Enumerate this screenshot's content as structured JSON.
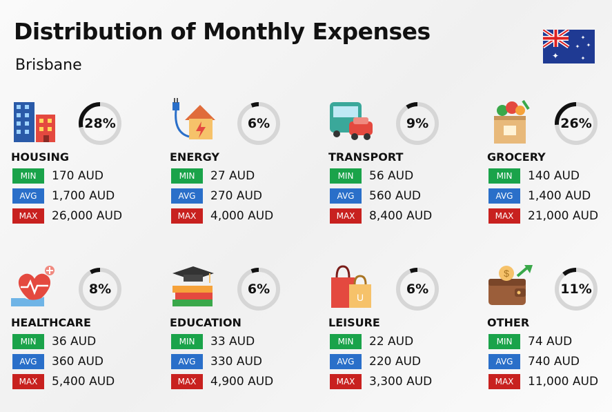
{
  "header": {
    "title": "Distribution of Monthly Expenses",
    "subtitle": "Brisbane"
  },
  "labels": {
    "min": "MIN",
    "avg": "AVG",
    "max": "MAX"
  },
  "colors": {
    "min": "#1aa34a",
    "avg": "#2a6fc9",
    "max": "#c8211f",
    "ring_track": "#d6d6d6",
    "ring_fill": "#111111"
  },
  "chart_data": {
    "type": "table",
    "title": "Distribution of Monthly Expenses",
    "subtitle": "Brisbane",
    "categories": [
      {
        "name": "HOUSING",
        "percent_label": "28%",
        "percent": 28,
        "icon": "apartment-buildings-icon",
        "min": "170 AUD",
        "avg": "1,700 AUD",
        "max": "26,000 AUD"
      },
      {
        "name": "ENERGY",
        "percent_label": "6%",
        "percent": 6,
        "icon": "house-plug-energy-icon",
        "min": "27 AUD",
        "avg": "270 AUD",
        "max": "4,000 AUD"
      },
      {
        "name": "TRANSPORT",
        "percent_label": "9%",
        "percent": 9,
        "icon": "bus-car-icon",
        "min": "56 AUD",
        "avg": "560 AUD",
        "max": "8,400 AUD"
      },
      {
        "name": "GROCERY",
        "percent_label": "26%",
        "percent": 26,
        "icon": "grocery-bag-icon",
        "min": "140 AUD",
        "avg": "1,400 AUD",
        "max": "21,000 AUD"
      },
      {
        "name": "HEALTHCARE",
        "percent_label": "8%",
        "percent": 8,
        "icon": "heart-hand-icon",
        "min": "36 AUD",
        "avg": "360 AUD",
        "max": "5,400 AUD"
      },
      {
        "name": "EDUCATION",
        "percent_label": "6%",
        "percent": 6,
        "icon": "books-graduation-cap-icon",
        "min": "33 AUD",
        "avg": "330 AUD",
        "max": "4,900 AUD"
      },
      {
        "name": "LEISURE",
        "percent_label": "6%",
        "percent": 6,
        "icon": "shopping-bags-icon",
        "min": "22 AUD",
        "avg": "220 AUD",
        "max": "3,300 AUD"
      },
      {
        "name": "OTHER",
        "percent_label": "11%",
        "percent": 11,
        "icon": "wallet-coin-icon",
        "min": "74 AUD",
        "avg": "740 AUD",
        "max": "11,000 AUD"
      }
    ]
  }
}
